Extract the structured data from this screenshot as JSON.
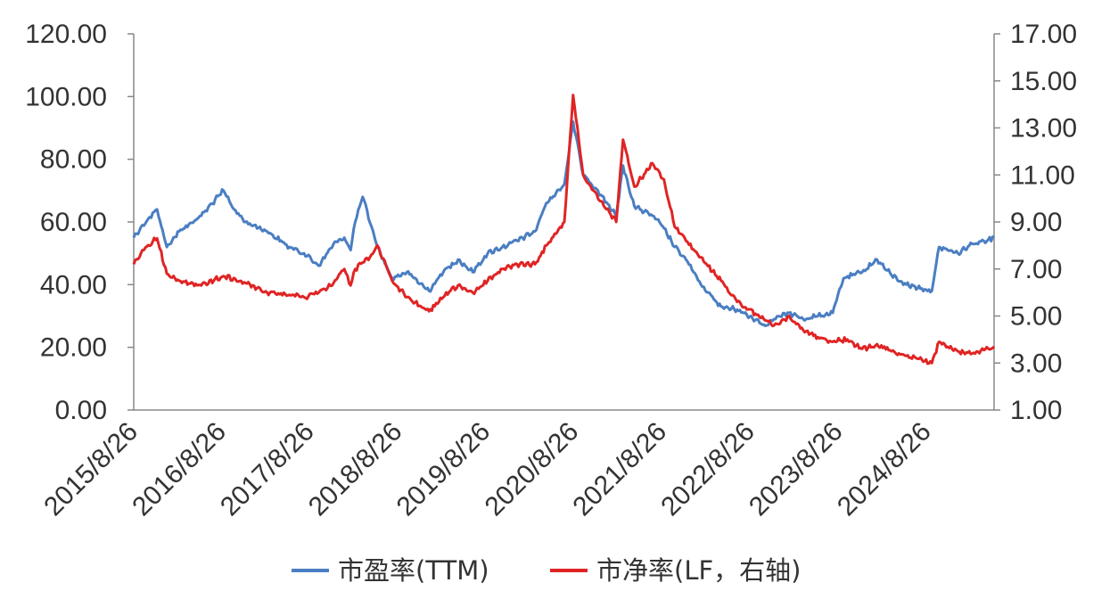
{
  "chart_data": {
    "type": "line",
    "title": "",
    "legend_position": "bottom",
    "grid": false,
    "x_ticks": [
      "2015/8/26",
      "2016/8/26",
      "2017/8/26",
      "2018/8/26",
      "2019/8/26",
      "2020/8/26",
      "2021/8/26",
      "2022/8/26",
      "2023/8/26",
      "2024/8/26"
    ],
    "x_range": [
      "2015-08-26",
      "2025-05-31"
    ],
    "y_left": {
      "range": [
        0,
        120
      ],
      "ticks": [
        "0.00",
        "20.00",
        "40.00",
        "60.00",
        "80.00",
        "100.00",
        "120.00"
      ]
    },
    "y_right": {
      "range": [
        1,
        17
      ],
      "ticks": [
        "1.00",
        "3.00",
        "5.00",
        "7.00",
        "9.00",
        "11.00",
        "13.00",
        "15.00",
        "17.00"
      ]
    },
    "series": [
      {
        "name": "市盈率(TTM)",
        "axis": "left",
        "color": "#4a7ec2",
        "x": [
          "2015-08-26",
          "2015-10-01",
          "2015-12-01",
          "2016-01-10",
          "2016-03-01",
          "2016-06-01",
          "2016-09-01",
          "2016-10-15",
          "2016-12-01",
          "2017-03-01",
          "2017-06-01",
          "2017-08-01",
          "2017-10-01",
          "2017-12-01",
          "2018-01-15",
          "2018-02-10",
          "2018-03-01",
          "2018-04-01",
          "2018-06-01",
          "2018-08-01",
          "2018-10-01",
          "2019-01-01",
          "2019-03-01",
          "2019-05-01",
          "2019-07-01",
          "2019-09-01",
          "2019-11-01",
          "2020-01-01",
          "2020-03-15",
          "2020-05-01",
          "2020-07-15",
          "2020-08-20",
          "2020-10-01",
          "2020-12-01",
          "2021-02-15",
          "2021-03-15",
          "2021-05-01",
          "2021-07-15",
          "2021-09-01",
          "2021-10-15",
          "2021-12-01",
          "2022-02-01",
          "2022-04-25",
          "2022-07-01",
          "2022-10-31",
          "2022-12-01",
          "2023-02-01",
          "2023-04-01",
          "2023-06-01",
          "2023-08-01",
          "2023-09-15",
          "2023-12-01",
          "2024-02-01",
          "2024-04-01",
          "2024-06-01",
          "2024-09-15",
          "2024-10-15",
          "2025-01-01",
          "2025-03-01",
          "2025-05-31"
        ],
        "values": [
          55,
          59,
          64,
          52,
          57,
          62,
          70,
          64,
          60,
          57,
          52,
          50,
          46,
          53,
          55,
          51,
          60,
          68,
          52,
          42,
          44,
          38,
          44,
          48,
          44,
          50,
          52,
          54,
          57,
          66,
          72,
          92,
          75,
          70,
          62,
          78,
          65,
          62,
          58,
          52,
          48,
          40,
          33,
          32,
          27,
          29,
          31,
          29,
          30,
          31,
          42,
          44,
          48,
          43,
          40,
          38,
          52,
          50,
          53,
          55
        ]
      },
      {
        "name": "市净率(LF，右轴)",
        "axis": "right",
        "color": "#e02424",
        "x": [
          "2015-08-26",
          "2015-10-01",
          "2015-12-01",
          "2016-01-10",
          "2016-03-01",
          "2016-06-01",
          "2016-09-01",
          "2016-12-01",
          "2017-03-01",
          "2017-06-01",
          "2017-08-01",
          "2017-10-01",
          "2017-12-01",
          "2018-01-15",
          "2018-02-10",
          "2018-03-01",
          "2018-05-01",
          "2018-06-01",
          "2018-08-01",
          "2018-10-01",
          "2019-01-01",
          "2019-03-01",
          "2019-05-01",
          "2019-07-01",
          "2019-09-01",
          "2019-11-01",
          "2020-01-01",
          "2020-03-15",
          "2020-05-01",
          "2020-07-15",
          "2020-08-20",
          "2020-10-01",
          "2020-12-01",
          "2021-02-15",
          "2021-03-15",
          "2021-05-01",
          "2021-07-15",
          "2021-09-01",
          "2021-10-15",
          "2021-12-01",
          "2022-02-01",
          "2022-04-25",
          "2022-07-01",
          "2022-10-31",
          "2022-12-01",
          "2023-02-01",
          "2023-04-01",
          "2023-06-01",
          "2023-08-01",
          "2023-10-01",
          "2023-12-01",
          "2024-02-01",
          "2024-04-01",
          "2024-06-01",
          "2024-09-15",
          "2024-10-15",
          "2025-01-01",
          "2025-03-01",
          "2025-05-31"
        ],
        "values": [
          7.2,
          7.8,
          8.3,
          6.8,
          6.5,
          6.3,
          6.7,
          6.4,
          6.0,
          5.9,
          5.8,
          6.0,
          6.4,
          7.0,
          6.3,
          7.0,
          7.5,
          8.0,
          6.5,
          5.8,
          5.2,
          5.8,
          6.3,
          6.0,
          6.5,
          7.0,
          7.2,
          7.2,
          8.0,
          9.0,
          14.4,
          11.0,
          10.0,
          9.0,
          12.5,
          10.5,
          11.5,
          10.8,
          8.8,
          8.2,
          7.5,
          6.5,
          5.6,
          4.8,
          4.6,
          5.0,
          4.4,
          4.1,
          3.9,
          4.0,
          3.6,
          3.8,
          3.5,
          3.3,
          3.0,
          3.9,
          3.5,
          3.4,
          3.7
        ]
      }
    ]
  }
}
